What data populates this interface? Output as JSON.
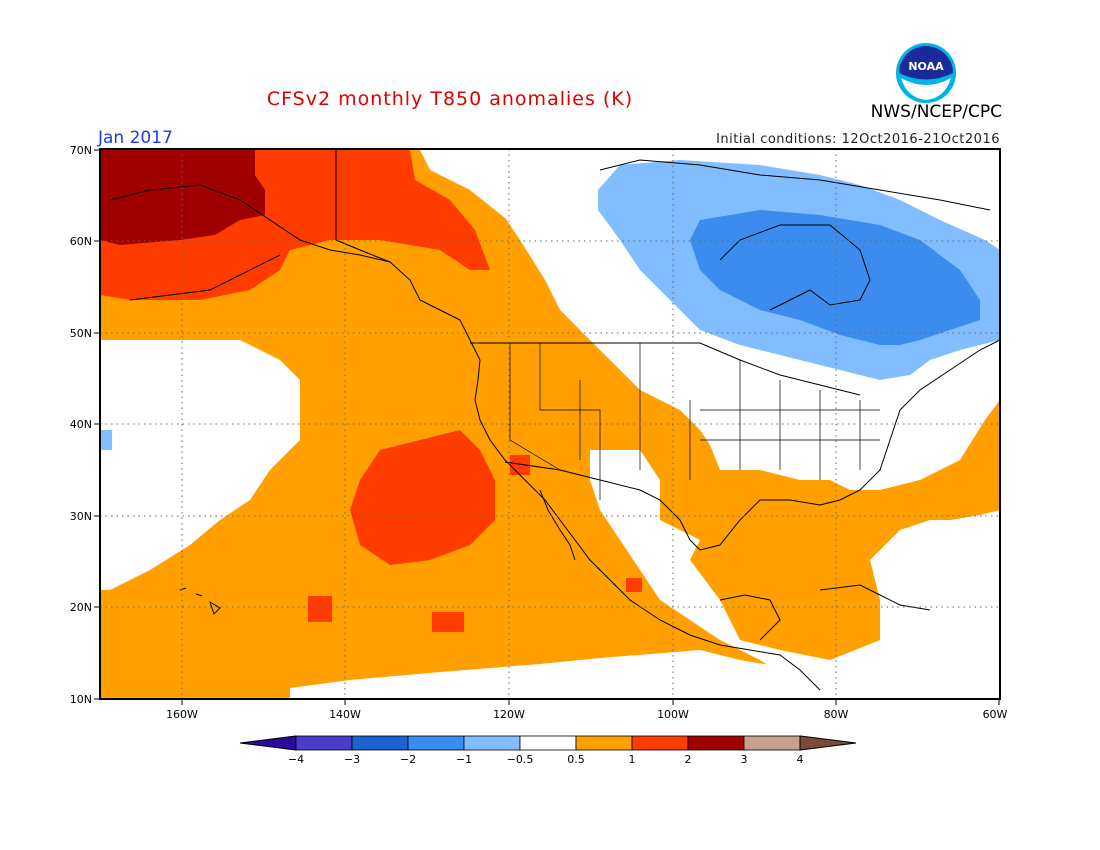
{
  "title": "CFSv2 monthly T850 anomalies (K)",
  "valid_month": "Jan 2017",
  "initial_conditions": "Initial conditions: 12Oct2016-21Oct2016",
  "agency": "NWS/NCEP/CPC",
  "logo_text": "NOAA",
  "lat_labels": [
    "70N",
    "60N",
    "50N",
    "40N",
    "30N",
    "20N",
    "10N"
  ],
  "lon_labels": [
    "160W",
    "140W",
    "120W",
    "100W",
    "80W",
    "60W"
  ],
  "colorbar": {
    "labels": [
      "−4",
      "−3",
      "−2",
      "−1",
      "−0.5",
      "0.5",
      "1",
      "2",
      "3",
      "4"
    ],
    "colors": [
      "#2a0aa0",
      "#4a3cc8",
      "#1e62d2",
      "#3c8cf0",
      "#82beff",
      "#ffffff",
      "#ffa000",
      "#ff3c00",
      "#a00000",
      "#c8a08c",
      "#7a4a3a"
    ]
  },
  "colors": {
    "warm_1": "#ffa000",
    "warm_2": "#ff3c00",
    "warm_3": "#a00000",
    "cool_1": "#82beff",
    "cool_2": "#3c8cf0"
  }
}
